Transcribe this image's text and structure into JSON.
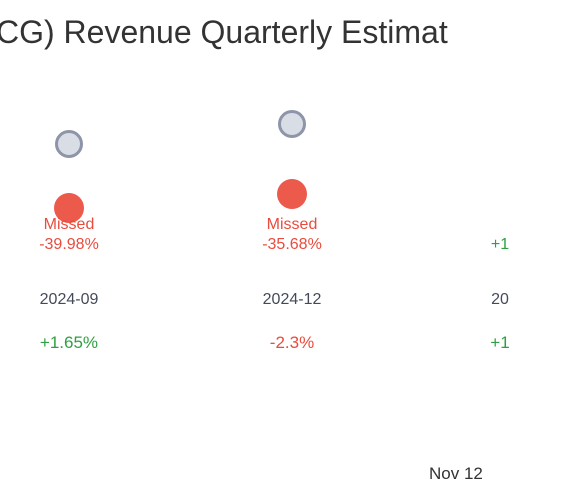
{
  "title": "CG) Revenue Quarterly Estimat",
  "footer_date": "Nov 12",
  "colors": {
    "missed": "#e84c3d",
    "beat": "#2ea043",
    "estimate_fill": "#d9dde6",
    "estimate_stroke": "#8e95a8",
    "actual_missed": "#ec5a4c"
  },
  "chart_data": {
    "type": "scatter",
    "title": "CG) Revenue Quarterly Estimat",
    "series": [
      {
        "name": "",
        "role": "estimate"
      },
      {
        "name": "",
        "role": "actual"
      }
    ],
    "columns": [
      {
        "period": "2024-09",
        "result": "Missed",
        "surprise": "-39.98%",
        "change": "+1.65%",
        "result_color": "missed",
        "change_color": "beat",
        "estimate_level": 0.63,
        "actual_level": 0.4
      },
      {
        "period": "2024-12",
        "result": "Missed",
        "surprise": "-35.68%",
        "change": "-2.3%",
        "result_color": "missed",
        "change_color": "missed",
        "estimate_level": 0.7,
        "actual_level": 0.45
      },
      {
        "period": "20",
        "result": "",
        "surprise": "+1",
        "change": "+1",
        "result_color": "beat",
        "change_color": "beat",
        "estimate_level": null,
        "actual_level": null
      }
    ]
  }
}
